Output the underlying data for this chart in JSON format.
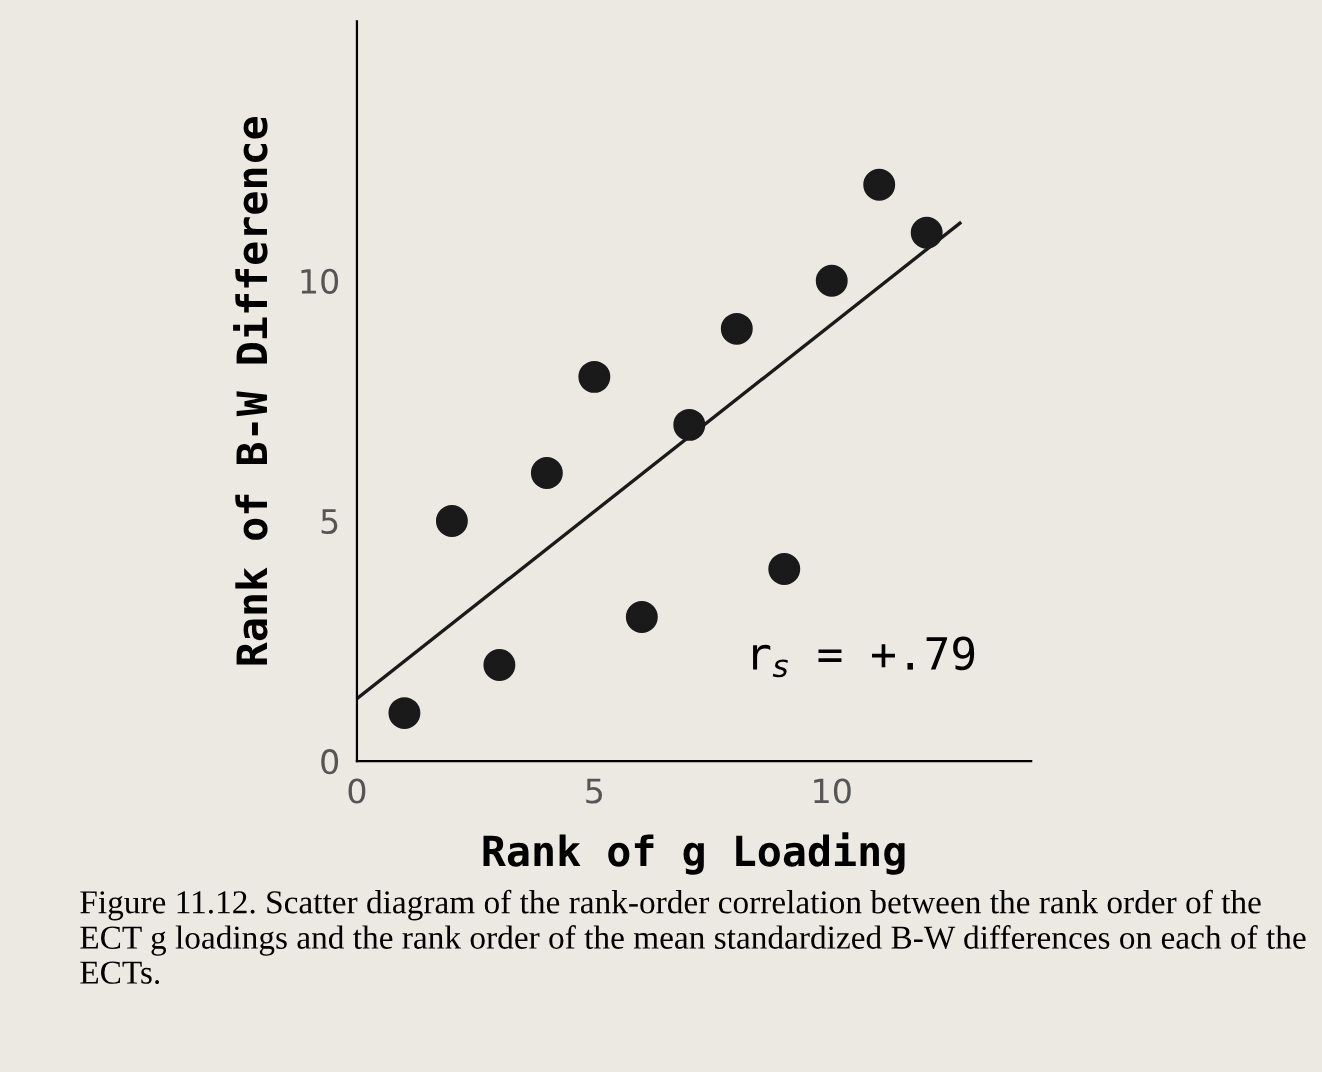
{
  "chart_data": {
    "type": "scatter",
    "xlabel": "Rank of g Loading",
    "ylabel": "Rank of B-W Difference",
    "xlim": [
      0,
      14.2
    ],
    "ylim": [
      0,
      15.4
    ],
    "xticks": [
      0,
      5,
      10
    ],
    "yticks": [
      0,
      5,
      10
    ],
    "grid": false,
    "legend": false,
    "marker": "circle",
    "series": [
      {
        "color": "#1a1a1a",
        "x": [
          1,
          2,
          3,
          4,
          5,
          6,
          7,
          8,
          9,
          10,
          11,
          12
        ],
        "values": [
          1,
          5,
          2,
          6,
          8,
          3,
          7,
          9,
          4,
          10,
          12,
          11
        ]
      },
      {
        "type": "line",
        "color": "#1a1a1a",
        "marker": "none",
        "x": [
          0,
          12.7
        ],
        "values": [
          1.3,
          11.2
        ]
      }
    ],
    "annotations": [
      "r$_{s}$ = +.79",
      "Figure 11.12. Scatter diagram of the rank-order correlation between the rank order of the ECT g loadings and the rank order of the mean standardized B-W differences on each of the ECTs."
    ]
  }
}
